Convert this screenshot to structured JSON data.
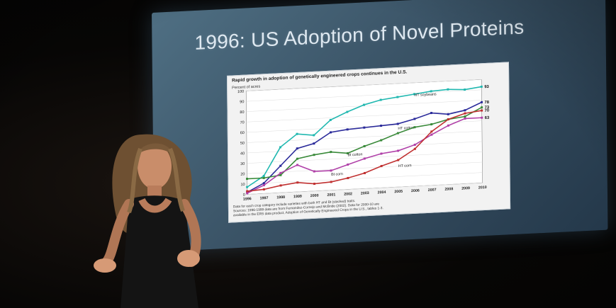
{
  "slide": {
    "title": "1996: US Adoption of Novel Proteins"
  },
  "figure": {
    "heading": "Rapid growth in adoption of genetically engineered crops continues in the U.S.",
    "ylabel": "Percent of acres",
    "notes": [
      "Data for each crop category include varieties with both HT and Bt (stacked) traits.",
      "Sources: 1996-1999 data are from Fernandez-Cornejo and McBride (2002). Data for 2000-10 are",
      "available in the ERS data product, Adoption of Genetically Engineered Crops in the U.S., tables 1-3."
    ]
  },
  "chart_data": {
    "type": "line",
    "title": "Rapid growth in adoption of genetically engineered crops continues in the U.S.",
    "xlabel": "",
    "ylabel": "Percent of acres",
    "ylim": [
      0,
      100
    ],
    "y_ticks": [
      0,
      10,
      20,
      30,
      40,
      50,
      60,
      70,
      80,
      90,
      100
    ],
    "x": [
      "1996",
      "1997",
      "1998",
      "1999",
      "2000",
      "2001",
      "2002",
      "2003",
      "2004",
      "2005",
      "2006",
      "2007",
      "2008",
      "2009",
      "2010"
    ],
    "series": [
      {
        "name": "HT soybeans",
        "color": "#20b8b0",
        "end_label": "93",
        "values": [
          7,
          17,
          44,
          56,
          54,
          68,
          75,
          81,
          85,
          87,
          89,
          91,
          92,
          91,
          93
        ]
      },
      {
        "name": "HT cotton",
        "color": "#2a2a9a",
        "end_label": "78",
        "values": [
          2,
          10,
          26,
          42,
          46,
          56,
          58,
          59,
          60,
          61,
          65,
          70,
          68,
          71,
          78
        ]
      },
      {
        "name": "Bt cotton",
        "color": "#3a8a3a",
        "end_label": "73",
        "values": [
          15,
          15,
          17,
          32,
          35,
          37,
          35,
          41,
          46,
          52,
          57,
          59,
          63,
          65,
          73
        ]
      },
      {
        "name": "Bt corn",
        "color": "#b040a8",
        "end_label": "63",
        "values": [
          1,
          8,
          19,
          26,
          19,
          19,
          24,
          29,
          33,
          35,
          40,
          49,
          57,
          63,
          63
        ]
      },
      {
        "name": "HT corn",
        "color": "#c03030",
        "end_label": "70",
        "values": [
          3,
          4,
          7,
          9,
          7,
          8,
          11,
          15,
          21,
          26,
          36,
          52,
          63,
          68,
          70
        ]
      }
    ]
  },
  "colors": {
    "slide_bg": "#3a5366",
    "slide_title": "#dfe9f1",
    "figure_bg": "#f2f2f2"
  }
}
